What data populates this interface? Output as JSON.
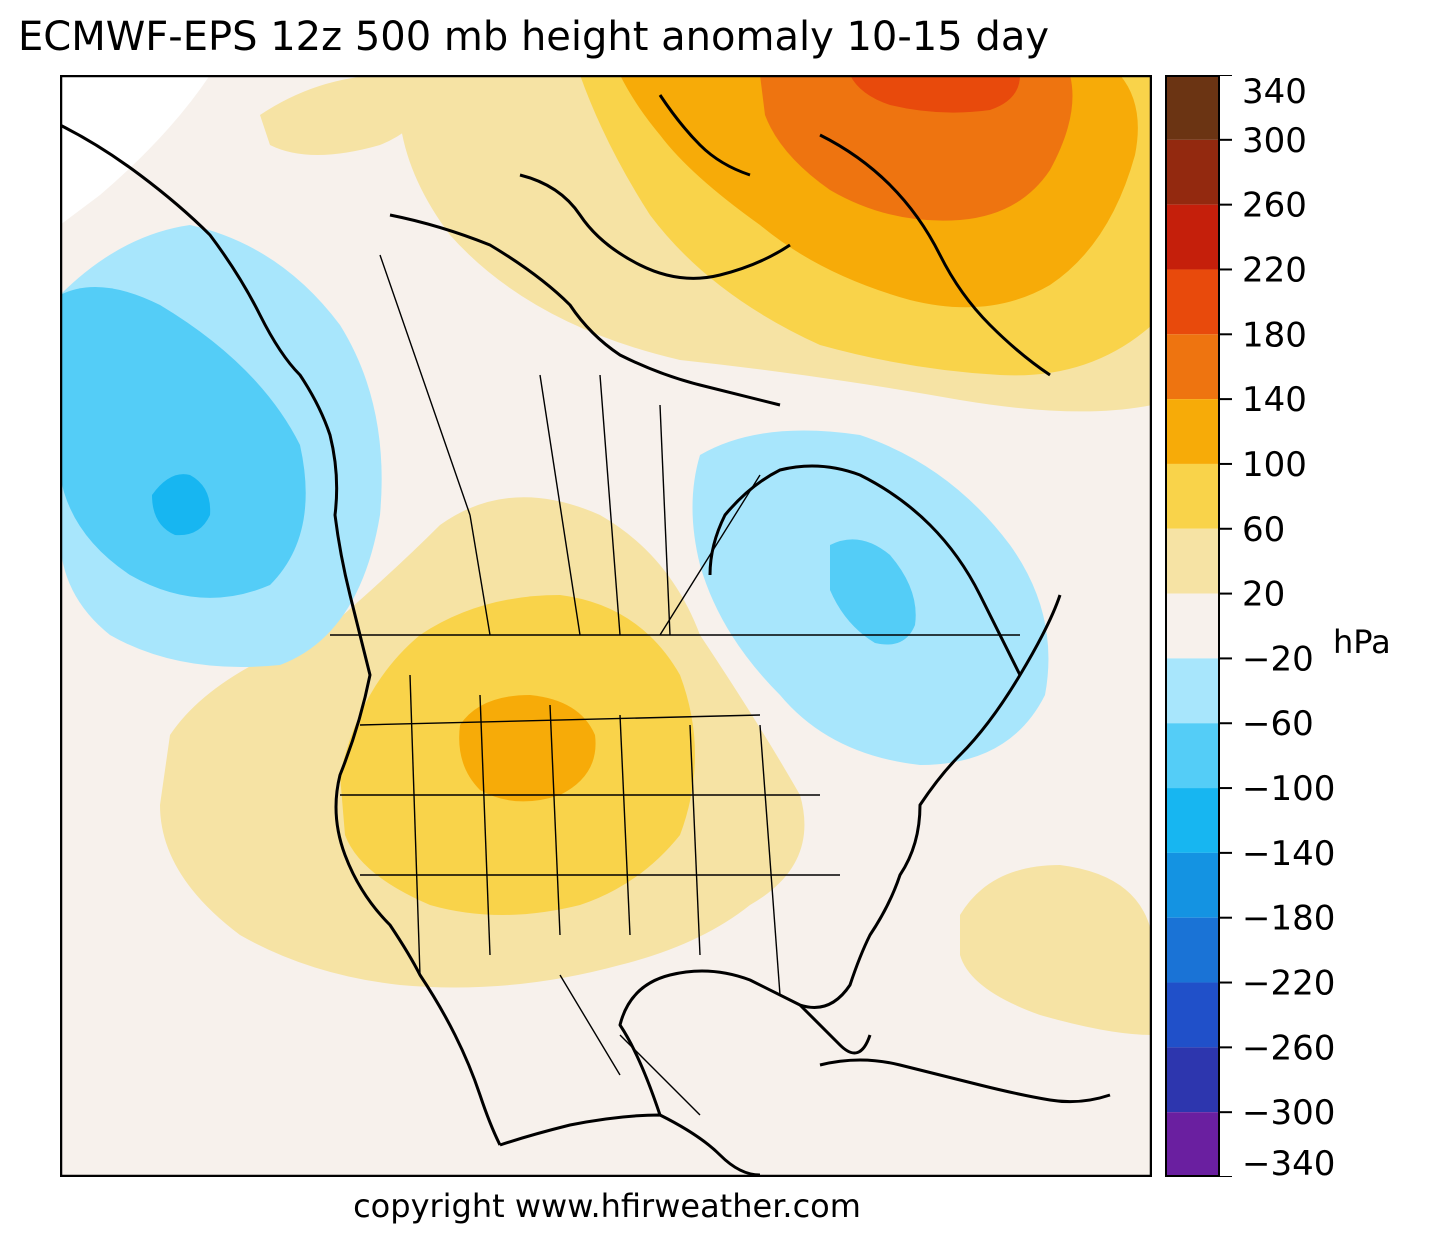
{
  "title": "ECMWF-EPS 12z 500 mb height anomaly 10-15 day",
  "copyright": "copyright www.hfirweather.com",
  "colorbar": {
    "unit": "hPa",
    "range": [
      -340,
      340
    ],
    "ticks": [
      340,
      300,
      260,
      220,
      180,
      140,
      100,
      60,
      20,
      -20,
      -60,
      -100,
      -140,
      -180,
      -220,
      -260,
      -300,
      -340
    ],
    "tick_labels": [
      "340",
      "300",
      "260",
      "220",
      "180",
      "140",
      "100",
      "60",
      "20",
      "−20",
      "−60",
      "−100",
      "−140",
      "−180",
      "−220",
      "−260",
      "−300",
      "−340"
    ],
    "bins": [
      {
        "from": 300,
        "to": 340,
        "color": "#6b3413"
      },
      {
        "from": 260,
        "to": 300,
        "color": "#93290f"
      },
      {
        "from": 220,
        "to": 260,
        "color": "#c51f0b"
      },
      {
        "from": 180,
        "to": 220,
        "color": "#e84a0c"
      },
      {
        "from": 140,
        "to": 180,
        "color": "#ee7410"
      },
      {
        "from": 100,
        "to": 140,
        "color": "#f7ab08"
      },
      {
        "from": 60,
        "to": 100,
        "color": "#f9d34a"
      },
      {
        "from": 20,
        "to": 60,
        "color": "#f6e3a4"
      },
      {
        "from": -20,
        "to": 20,
        "color": "#f7f1ec"
      },
      {
        "from": -60,
        "to": -20,
        "color": "#a8e6fc"
      },
      {
        "from": -100,
        "to": -60,
        "color": "#54cdf7"
      },
      {
        "from": -140,
        "to": -100,
        "color": "#17b6f1"
      },
      {
        "from": -180,
        "to": -140,
        "color": "#1493e2"
      },
      {
        "from": -220,
        "to": -180,
        "color": "#1a73d6"
      },
      {
        "from": -260,
        "to": -220,
        "color": "#2050c9"
      },
      {
        "from": -300,
        "to": -260,
        "color": "#2d36ae"
      },
      {
        "from": -340,
        "to": -300,
        "color": "#6a1fa0"
      }
    ]
  },
  "map": {
    "region": "North America",
    "anomaly_features": [
      {
        "area": "Greenland / Baffin Bay",
        "max_bin": "180 to 220",
        "sign": "positive"
      },
      {
        "area": "Northern Rockies / Wyoming",
        "max_bin": "100 to 140",
        "sign": "positive"
      },
      {
        "area": "Gulf of Alaska",
        "min_bin": "-140 to -100",
        "sign": "negative"
      },
      {
        "area": "Quebec / Labrador",
        "min_bin": "-100 to -60",
        "sign": "negative"
      },
      {
        "area": "Western Atlantic",
        "max_bin": "20 to 60",
        "sign": "positive"
      }
    ]
  }
}
